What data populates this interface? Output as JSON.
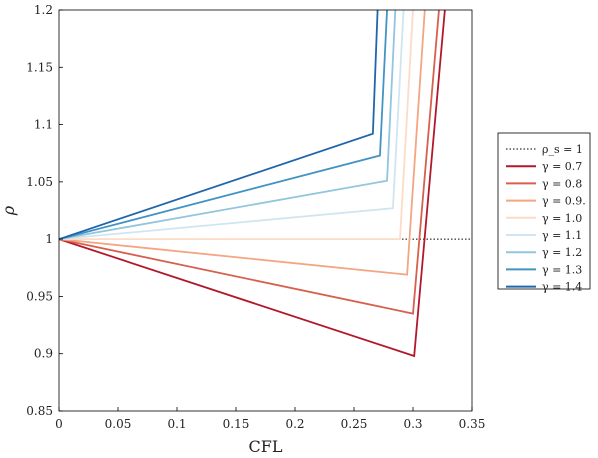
{
  "chart_data": {
    "type": "line",
    "xlabel": "CFL",
    "ylabel": "ρ",
    "xlim": [
      0,
      0.35
    ],
    "ylim": [
      0.85,
      1.2
    ],
    "xticks": [
      "0",
      "0.05",
      "0.1",
      "0.15",
      "0.2",
      "0.25",
      "0.3",
      "0.35"
    ],
    "yticks": [
      "0.85",
      "0.9",
      "0.95",
      "1",
      "1.05",
      "1.1",
      "1.15",
      "1.2"
    ],
    "grid": false,
    "legend_position": "outside-right",
    "reference": {
      "name": "ρ_s = 1",
      "y": 1.0,
      "x_range": [
        0,
        0.35
      ],
      "style": "dotted",
      "color": "#000000"
    },
    "series": [
      {
        "name": "γ = 0.7",
        "color": "#b2182b",
        "points": [
          [
            0.0,
            1.0
          ],
          [
            0.301,
            0.898
          ],
          [
            0.327,
            1.2
          ]
        ]
      },
      {
        "name": "γ = 0.8",
        "color": "#d6604d",
        "points": [
          [
            0.0,
            1.0
          ],
          [
            0.3,
            0.935
          ],
          [
            0.322,
            1.2
          ]
        ]
      },
      {
        "name": "γ = 0.9.",
        "color": "#f4a582",
        "points": [
          [
            0.0,
            1.0
          ],
          [
            0.295,
            0.969
          ],
          [
            0.31,
            1.2
          ]
        ]
      },
      {
        "name": "γ = 1.0",
        "color": "#fddbc7",
        "points": [
          [
            0.0,
            1.0
          ],
          [
            0.289,
            1.0
          ],
          [
            0.3,
            1.2
          ]
        ]
      },
      {
        "name": "γ = 1.1",
        "color": "#d1e5f0",
        "points": [
          [
            0.0,
            1.0
          ],
          [
            0.283,
            1.027
          ],
          [
            0.292,
            1.2
          ]
        ]
      },
      {
        "name": "γ = 1.2",
        "color": "#92c5de",
        "points": [
          [
            0.0,
            1.0
          ],
          [
            0.278,
            1.051
          ],
          [
            0.285,
            1.2
          ]
        ]
      },
      {
        "name": "γ = 1.3",
        "color": "#4393c3",
        "points": [
          [
            0.0,
            1.0
          ],
          [
            0.272,
            1.073
          ],
          [
            0.278,
            1.2
          ]
        ]
      },
      {
        "name": "γ = 1.4",
        "color": "#2166ac",
        "points": [
          [
            0.0,
            1.0
          ],
          [
            0.266,
            1.092
          ],
          [
            0.27,
            1.2
          ]
        ]
      }
    ]
  }
}
